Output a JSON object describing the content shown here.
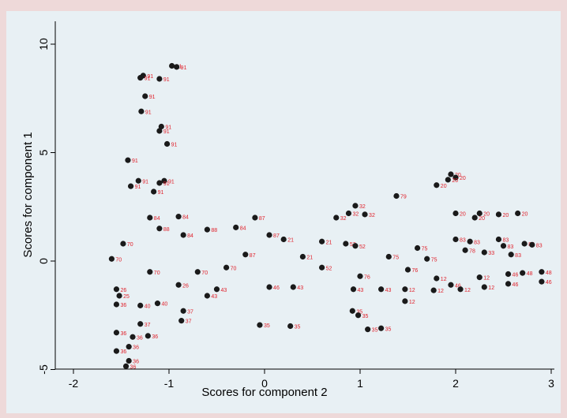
{
  "chart_data": {
    "type": "scatter",
    "xlabel": "Scores for component 2",
    "ylabel": "Scores for component 1",
    "xlim": [
      -2.1,
      3.05
    ],
    "ylim": [
      -5.3,
      10.3
    ],
    "xticks": [
      -2,
      -1,
      0,
      1,
      2,
      3
    ],
    "yticks": [
      -5,
      0,
      5,
      10
    ],
    "xtick_labels": [
      "-2",
      "-1",
      "0",
      "1",
      "2",
      "3"
    ],
    "ytick_labels": [
      "-5",
      "0",
      "5",
      "10"
    ],
    "grid": false,
    "marker_color": "#1a1a1a",
    "label_color": "#e0202a",
    "points": [
      {
        "x": -0.97,
        "y": 9.0,
        "label": "91"
      },
      {
        "x": -0.92,
        "y": 8.95,
        "label": "91"
      },
      {
        "x": -1.27,
        "y": 8.55,
        "label": "91"
      },
      {
        "x": -1.3,
        "y": 8.45,
        "label": "91"
      },
      {
        "x": -1.1,
        "y": 8.4,
        "label": "91"
      },
      {
        "x": -1.25,
        "y": 7.6,
        "label": "91"
      },
      {
        "x": -1.29,
        "y": 6.9,
        "label": "91"
      },
      {
        "x": -1.08,
        "y": 6.2,
        "label": "91"
      },
      {
        "x": -1.1,
        "y": 6.0,
        "label": "91"
      },
      {
        "x": -1.02,
        "y": 5.4,
        "label": "91"
      },
      {
        "x": -1.43,
        "y": 4.65,
        "label": "91"
      },
      {
        "x": -1.32,
        "y": 3.7,
        "label": "91"
      },
      {
        "x": -1.4,
        "y": 3.45,
        "label": "91"
      },
      {
        "x": -1.05,
        "y": 3.7,
        "label": "91"
      },
      {
        "x": -1.1,
        "y": 3.6,
        "label": "91"
      },
      {
        "x": -1.16,
        "y": 3.2,
        "label": "91"
      },
      {
        "x": -1.2,
        "y": 2.0,
        "label": "84"
      },
      {
        "x": -0.9,
        "y": 2.05,
        "label": "84"
      },
      {
        "x": -1.1,
        "y": 1.5,
        "label": "88"
      },
      {
        "x": -0.1,
        "y": 2.0,
        "label": "87"
      },
      {
        "x": -1.48,
        "y": 0.8,
        "label": "70"
      },
      {
        "x": -1.6,
        "y": 0.1,
        "label": "70"
      },
      {
        "x": -1.55,
        "y": -1.3,
        "label": "26"
      },
      {
        "x": -1.52,
        "y": -1.6,
        "label": "25"
      },
      {
        "x": -1.55,
        "y": -2.0,
        "label": "36"
      },
      {
        "x": -1.3,
        "y": -2.05,
        "label": "40"
      },
      {
        "x": -1.12,
        "y": -1.95,
        "label": "40"
      },
      {
        "x": -1.3,
        "y": -2.9,
        "label": "37"
      },
      {
        "x": -0.85,
        "y": -2.3,
        "label": "37"
      },
      {
        "x": -0.87,
        "y": -2.75,
        "label": "37"
      },
      {
        "x": -1.55,
        "y": -3.3,
        "label": "36"
      },
      {
        "x": -1.38,
        "y": -3.5,
        "label": "36"
      },
      {
        "x": -1.22,
        "y": -3.45,
        "label": "36"
      },
      {
        "x": -1.42,
        "y": -3.95,
        "label": "36"
      },
      {
        "x": -1.55,
        "y": -4.15,
        "label": "36"
      },
      {
        "x": -1.42,
        "y": -4.6,
        "label": "36"
      },
      {
        "x": -1.45,
        "y": -4.85,
        "label": "36"
      },
      {
        "x": -0.6,
        "y": -1.6,
        "label": "43"
      },
      {
        "x": -0.05,
        "y": -2.95,
        "label": "35"
      },
      {
        "x": 0.27,
        "y": -3.0,
        "label": "35"
      },
      {
        "x": 1.08,
        "y": -3.15,
        "label": "35"
      },
      {
        "x": 1.22,
        "y": -3.1,
        "label": "35"
      },
      {
        "x": 0.92,
        "y": -2.3,
        "label": "35"
      },
      {
        "x": 0.98,
        "y": -2.5,
        "label": "35"
      },
      {
        "x": 0.93,
        "y": -1.3,
        "label": "43"
      },
      {
        "x": 1.22,
        "y": -1.3,
        "label": "43"
      },
      {
        "x": 1.47,
        "y": -1.3,
        "label": "12"
      },
      {
        "x": 1.47,
        "y": -1.85,
        "label": "12"
      },
      {
        "x": 1.77,
        "y": -1.35,
        "label": "12"
      },
      {
        "x": 1.95,
        "y": -1.1,
        "label": "46"
      },
      {
        "x": 2.05,
        "y": -1.3,
        "label": "12"
      },
      {
        "x": 2.3,
        "y": -1.2,
        "label": "12"
      },
      {
        "x": 2.55,
        "y": -1.05,
        "label": "46"
      },
      {
        "x": 2.9,
        "y": -0.95,
        "label": "46"
      },
      {
        "x": 2.9,
        "y": -0.5,
        "label": "48"
      },
      {
        "x": 0.88,
        "y": 2.2,
        "label": "32"
      },
      {
        "x": 0.95,
        "y": 2.55,
        "label": "32"
      },
      {
        "x": 1.05,
        "y": 2.15,
        "label": "32"
      },
      {
        "x": 0.75,
        "y": 2.0,
        "label": "32"
      },
      {
        "x": 1.38,
        "y": 3.0,
        "label": "79"
      },
      {
        "x": 1.95,
        "y": 4.0,
        "label": "20"
      },
      {
        "x": 2.0,
        "y": 3.85,
        "label": "20"
      },
      {
        "x": 1.92,
        "y": 3.75,
        "label": "20"
      },
      {
        "x": 1.8,
        "y": 3.5,
        "label": "20"
      },
      {
        "x": 2.0,
        "y": 2.2,
        "label": "20"
      },
      {
        "x": 2.25,
        "y": 2.2,
        "label": "20"
      },
      {
        "x": 2.45,
        "y": 2.15,
        "label": "20"
      },
      {
        "x": 2.65,
        "y": 2.2,
        "label": "20"
      },
      {
        "x": 2.2,
        "y": 2.0,
        "label": "20"
      },
      {
        "x": 2.45,
        "y": 1.0,
        "label": "83"
      },
      {
        "x": 2.5,
        "y": 0.7,
        "label": "83"
      },
      {
        "x": 2.58,
        "y": 0.3,
        "label": "83"
      },
      {
        "x": 2.72,
        "y": 0.8,
        "label": "83"
      },
      {
        "x": 2.8,
        "y": 0.75,
        "label": "83"
      },
      {
        "x": 2.15,
        "y": 0.9,
        "label": "83"
      },
      {
        "x": 2.0,
        "y": 1.0,
        "label": "83"
      },
      {
        "x": 1.6,
        "y": 0.6,
        "label": "75"
      },
      {
        "x": 2.1,
        "y": 0.5,
        "label": "78"
      },
      {
        "x": 2.3,
        "y": 0.4,
        "label": "33"
      },
      {
        "x": 2.7,
        "y": -0.55,
        "label": "48"
      },
      {
        "x": 2.55,
        "y": -0.6,
        "label": "46"
      },
      {
        "x": 1.8,
        "y": -0.8,
        "label": "12"
      },
      {
        "x": 2.25,
        "y": -0.75,
        "label": "12"
      },
      {
        "x": 1.0,
        "y": -0.7,
        "label": "76"
      },
      {
        "x": 0.85,
        "y": 0.8,
        "label": "52"
      },
      {
        "x": 0.95,
        "y": 0.7,
        "label": "52"
      },
      {
        "x": 0.6,
        "y": 0.9,
        "label": "21"
      },
      {
        "x": 0.2,
        "y": 1.0,
        "label": "21"
      },
      {
        "x": -0.3,
        "y": 1.55,
        "label": "84"
      },
      {
        "x": 0.05,
        "y": 1.2,
        "label": "87"
      },
      {
        "x": -0.6,
        "y": 1.45,
        "label": "88"
      },
      {
        "x": -0.85,
        "y": 1.2,
        "label": "84"
      },
      {
        "x": -0.5,
        "y": -1.3,
        "label": "43"
      },
      {
        "x": 0.3,
        "y": -1.2,
        "label": "43"
      },
      {
        "x": 0.05,
        "y": -1.2,
        "label": "46"
      },
      {
        "x": -0.9,
        "y": -1.1,
        "label": "26"
      },
      {
        "x": -1.2,
        "y": -0.5,
        "label": "70"
      },
      {
        "x": -0.7,
        "y": -0.5,
        "label": "70"
      },
      {
        "x": -0.4,
        "y": -0.3,
        "label": "70"
      },
      {
        "x": -0.2,
        "y": 0.3,
        "label": "87"
      },
      {
        "x": 0.4,
        "y": 0.2,
        "label": "21"
      },
      {
        "x": 0.6,
        "y": -0.3,
        "label": "52"
      },
      {
        "x": 1.3,
        "y": 0.2,
        "label": "75"
      },
      {
        "x": 1.5,
        "y": -0.4,
        "label": "76"
      },
      {
        "x": 1.7,
        "y": 0.1,
        "label": "75"
      }
    ]
  }
}
